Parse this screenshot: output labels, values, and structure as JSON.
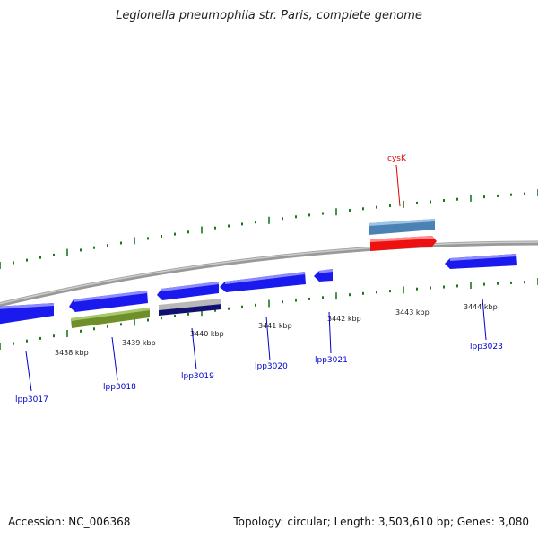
{
  "title": "Legionella pneumophila str. Paris, complete genome",
  "footer": {
    "accession": "Accession: NC_006368",
    "summary": "Topology: circular; Length: 3,503,610 bp; Genes: 3,080"
  },
  "scale_labels": [
    "3438 kbp",
    "3439 kbp",
    "3440 kbp",
    "3441 kbp",
    "3442 kbp",
    "3443 kbp",
    "3444 kbp"
  ],
  "genes": [
    {
      "name": "lpp3017",
      "color": "#1a1aee"
    },
    {
      "name": "lpp3018",
      "color": "#1a1aee"
    },
    {
      "name": "lpp3019",
      "color": "#1a1aee"
    },
    {
      "name": "lpp3020",
      "color": "#1a1aee"
    },
    {
      "name": "lpp3021",
      "color": "#1a1aee"
    },
    {
      "name": "lpp3023",
      "color": "#1a1aee"
    },
    {
      "name": "cysK",
      "color": "#ee1111"
    }
  ],
  "colors": {
    "backbone": "#888888",
    "tick": "#1a7a1a",
    "gene_blue": "#1a1aee",
    "gene_red": "#ee1111",
    "label_blue": "#0000cc",
    "label_red": "#dd0000",
    "feature_green": "#6f8f2a",
    "feature_steel": "#4a82b4",
    "feature_navy": "#101070",
    "feature_gray": "#b8b8b8"
  }
}
